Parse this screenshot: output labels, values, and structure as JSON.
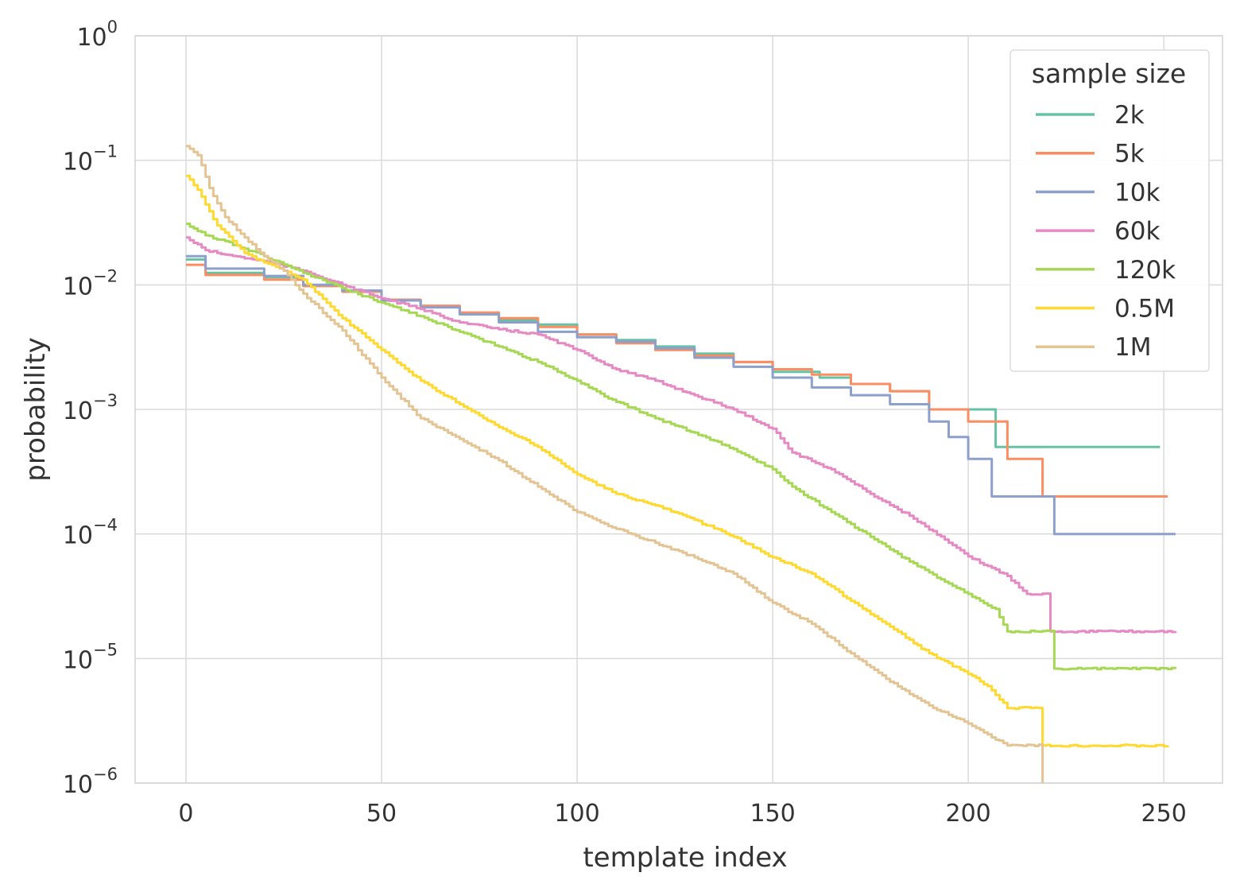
{
  "chart_data": {
    "type": "line",
    "title": "",
    "xlabel": "template index",
    "ylabel": "probability",
    "xlim": [
      -13,
      265
    ],
    "ylim_log10": [
      -6,
      0
    ],
    "yscale": "log",
    "grid": true,
    "x_ticks": [
      0,
      50,
      100,
      150,
      200,
      250
    ],
    "y_ticks": [
      {
        "base": "10",
        "exp": "0",
        "value_log10": 0
      },
      {
        "base": "10",
        "exp": "−1",
        "value_log10": -1
      },
      {
        "base": "10",
        "exp": "−2",
        "value_log10": -2
      },
      {
        "base": "10",
        "exp": "−3",
        "value_log10": -3
      },
      {
        "base": "10",
        "exp": "−4",
        "value_log10": -4
      },
      {
        "base": "10",
        "exp": "−5",
        "value_log10": -5
      },
      {
        "base": "10",
        "exp": "−6",
        "value_log10": -6
      }
    ],
    "legend": {
      "title": "sample size",
      "position": "top-right"
    },
    "series": [
      {
        "name": "2k",
        "color": "#66c2a5",
        "step": true,
        "points": [
          [
            0,
            0.016
          ],
          [
            5,
            0.0125
          ],
          [
            20,
            0.0115
          ],
          [
            30,
            0.0098
          ],
          [
            40,
            0.0088
          ],
          [
            50,
            0.0075
          ],
          [
            60,
            0.0067
          ],
          [
            70,
            0.0058
          ],
          [
            80,
            0.0052
          ],
          [
            90,
            0.0048
          ],
          [
            100,
            0.004
          ],
          [
            110,
            0.0036
          ],
          [
            120,
            0.0032
          ],
          [
            130,
            0.0028
          ],
          [
            140,
            0.0024
          ],
          [
            150,
            0.002
          ],
          [
            160,
            0.002
          ],
          [
            162,
            0.0018
          ],
          [
            170,
            0.0016
          ],
          [
            180,
            0.0014
          ],
          [
            190,
            0.001
          ],
          [
            207,
            0.001
          ],
          [
            207,
            0.0005
          ],
          [
            249,
            0.0005
          ]
        ]
      },
      {
        "name": "5k",
        "color": "#fc8d62",
        "step": true,
        "points": [
          [
            0,
            0.0145
          ],
          [
            5,
            0.012
          ],
          [
            20,
            0.011
          ],
          [
            30,
            0.0098
          ],
          [
            40,
            0.0088
          ],
          [
            50,
            0.0076
          ],
          [
            60,
            0.0068
          ],
          [
            70,
            0.006
          ],
          [
            80,
            0.0054
          ],
          [
            90,
            0.0046
          ],
          [
            100,
            0.004
          ],
          [
            110,
            0.0034
          ],
          [
            120,
            0.003
          ],
          [
            130,
            0.0027
          ],
          [
            140,
            0.0024
          ],
          [
            150,
            0.0021
          ],
          [
            160,
            0.0019
          ],
          [
            170,
            0.0016
          ],
          [
            180,
            0.0014
          ],
          [
            190,
            0.001
          ],
          [
            200,
            0.0008
          ],
          [
            210,
            0.0006
          ],
          [
            210,
            0.0004
          ],
          [
            219,
            0.0004
          ],
          [
            219,
            0.0002
          ],
          [
            251,
            0.0002
          ]
        ]
      },
      {
        "name": "10k",
        "color": "#8da0cb",
        "step": true,
        "points": [
          [
            0,
            0.017
          ],
          [
            5,
            0.0135
          ],
          [
            20,
            0.0118
          ],
          [
            30,
            0.01
          ],
          [
            40,
            0.009
          ],
          [
            50,
            0.0075
          ],
          [
            60,
            0.0066
          ],
          [
            70,
            0.0058
          ],
          [
            80,
            0.005
          ],
          [
            90,
            0.0042
          ],
          [
            100,
            0.0038
          ],
          [
            110,
            0.0035
          ],
          [
            120,
            0.0031
          ],
          [
            130,
            0.0026
          ],
          [
            140,
            0.0022
          ],
          [
            150,
            0.0018
          ],
          [
            160,
            0.0015
          ],
          [
            170,
            0.0013
          ],
          [
            180,
            0.0011
          ],
          [
            190,
            0.0008
          ],
          [
            195,
            0.0006
          ],
          [
            200,
            0.0004
          ],
          [
            206,
            0.0004
          ],
          [
            206,
            0.0002
          ],
          [
            222,
            0.0002
          ],
          [
            222,
            0.0001
          ],
          [
            253,
            0.0001
          ]
        ]
      },
      {
        "name": "60k",
        "color": "#e78ac3",
        "step": false,
        "points": [
          [
            0,
            0.024
          ],
          [
            5,
            0.019
          ],
          [
            10,
            0.0175
          ],
          [
            20,
            0.0155
          ],
          [
            30,
            0.013
          ],
          [
            40,
            0.01
          ],
          [
            50,
            0.0078
          ],
          [
            60,
            0.0064
          ],
          [
            70,
            0.005
          ],
          [
            80,
            0.0044
          ],
          [
            90,
            0.004
          ],
          [
            100,
            0.003
          ],
          [
            110,
            0.0021
          ],
          [
            120,
            0.0017
          ],
          [
            130,
            0.0013
          ],
          [
            140,
            0.001
          ],
          [
            150,
            0.0007
          ],
          [
            155,
            0.00045
          ],
          [
            165,
            0.00033
          ],
          [
            175,
            0.00021
          ],
          [
            185,
            0.00014
          ],
          [
            195,
            8.5e-05
          ],
          [
            200,
            6.6e-05
          ],
          [
            210,
            4.6e-05
          ],
          [
            215,
            3.3e-05
          ],
          [
            221,
            3.3e-05
          ],
          [
            221,
            1.65e-05
          ],
          [
            253,
            1.65e-05
          ]
        ]
      },
      {
        "name": "120k",
        "color": "#a6d854",
        "step": false,
        "points": [
          [
            0,
            0.031
          ],
          [
            5,
            0.025
          ],
          [
            10,
            0.0225
          ],
          [
            20,
            0.017
          ],
          [
            30,
            0.0125
          ],
          [
            40,
            0.0094
          ],
          [
            50,
            0.0072
          ],
          [
            60,
            0.0056
          ],
          [
            70,
            0.0042
          ],
          [
            80,
            0.0032
          ],
          [
            90,
            0.0024
          ],
          [
            100,
            0.0017
          ],
          [
            110,
            0.00115
          ],
          [
            120,
            0.00085
          ],
          [
            130,
            0.00065
          ],
          [
            140,
            0.00048
          ],
          [
            150,
            0.00033
          ],
          [
            155,
            0.00024
          ],
          [
            165,
            0.00015
          ],
          [
            175,
            9.5e-05
          ],
          [
            185,
            6e-05
          ],
          [
            195,
            4e-05
          ],
          [
            200,
            3.3e-05
          ],
          [
            207,
            2.5e-05
          ],
          [
            210,
            1.65e-05
          ],
          [
            222,
            1.65e-05
          ],
          [
            222,
            8.3e-06
          ],
          [
            253,
            8.3e-06
          ]
        ]
      },
      {
        "name": "0.5M",
        "color": "#ffd92f",
        "step": false,
        "points": [
          [
            0,
            0.075
          ],
          [
            3,
            0.058
          ],
          [
            8,
            0.03
          ],
          [
            15,
            0.018
          ],
          [
            25,
            0.013
          ],
          [
            30,
            0.011
          ],
          [
            40,
            0.0054
          ],
          [
            50,
            0.003
          ],
          [
            60,
            0.0017
          ],
          [
            70,
            0.0011
          ],
          [
            80,
            0.00072
          ],
          [
            90,
            0.0005
          ],
          [
            100,
            0.0003
          ],
          [
            110,
            0.00021
          ],
          [
            120,
            0.00017
          ],
          [
            130,
            0.00013
          ],
          [
            140,
            9.5e-05
          ],
          [
            150,
            6.5e-05
          ],
          [
            160,
            4.8e-05
          ],
          [
            170,
            2.9e-05
          ],
          [
            180,
            1.8e-05
          ],
          [
            190,
            1.1e-05
          ],
          [
            200,
            7.5e-06
          ],
          [
            205,
            6e-06
          ],
          [
            210,
            4e-06
          ],
          [
            219,
            4e-06
          ],
          [
            219,
            2e-06
          ],
          [
            251,
            2e-06
          ]
        ]
      },
      {
        "name": "1M",
        "color": "#e5c494",
        "step": false,
        "points": [
          [
            0,
            0.13
          ],
          [
            3,
            0.11
          ],
          [
            6,
            0.06
          ],
          [
            10,
            0.035
          ],
          [
            15,
            0.024
          ],
          [
            20,
            0.017
          ],
          [
            25,
            0.013
          ],
          [
            30,
            0.0085
          ],
          [
            40,
            0.0043
          ],
          [
            50,
            0.0018
          ],
          [
            60,
            0.00085
          ],
          [
            70,
            0.00058
          ],
          [
            80,
            0.00039
          ],
          [
            90,
            0.00024
          ],
          [
            100,
            0.00015
          ],
          [
            110,
            0.00011
          ],
          [
            120,
            8.5e-05
          ],
          [
            130,
            6.5e-05
          ],
          [
            140,
            4.8e-05
          ],
          [
            150,
            2.8e-05
          ],
          [
            160,
            1.9e-05
          ],
          [
            170,
            1.1e-05
          ],
          [
            180,
            6.5e-06
          ],
          [
            190,
            4.2e-06
          ],
          [
            200,
            3e-06
          ],
          [
            210,
            2e-06
          ],
          [
            219,
            2e-06
          ],
          [
            219,
            9e-07
          ]
        ]
      }
    ]
  }
}
